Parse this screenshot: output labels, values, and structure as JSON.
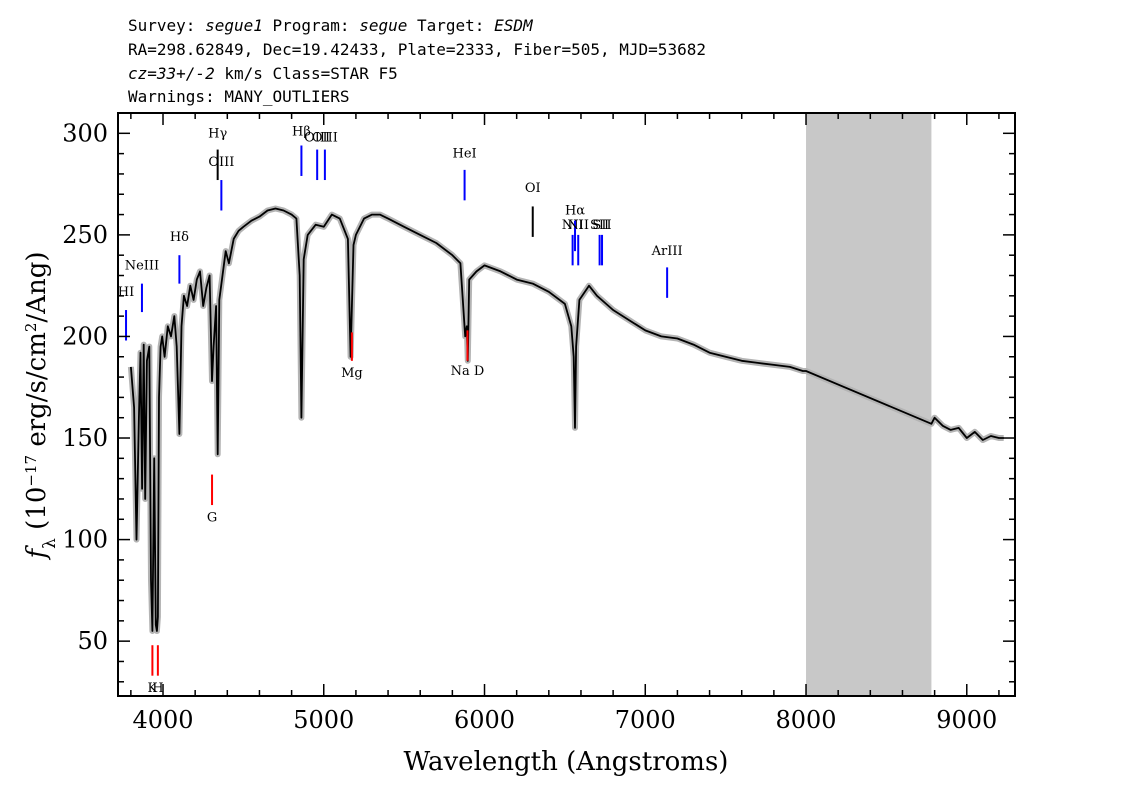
{
  "header": {
    "line1": [
      {
        "text": "Survey: ",
        "italic": false
      },
      {
        "text": "segue1",
        "italic": true
      },
      {
        "text": " Program: ",
        "italic": false
      },
      {
        "text": "segue",
        "italic": true
      },
      {
        "text": " Target: ",
        "italic": false
      },
      {
        "text": "ESDM",
        "italic": true
      }
    ],
    "line2": "RA=298.62849, Dec=19.42433, Plate=2333, Fiber=505, MJD=53682",
    "line3": [
      {
        "text": "cz=33+/-2",
        "italic": true
      },
      {
        "text": " km/s Class=STAR F5",
        "italic": false
      }
    ],
    "line4": "Warnings: MANY_OUTLIERS"
  },
  "chart_data": {
    "type": "line",
    "title": "",
    "xlabel": "Wavelength (Angstroms)",
    "ylabel": {
      "f": "f",
      "sub": "λ",
      "rest1": " (10",
      "sup1": "−17",
      "rest2": " erg/s/cm",
      "sup2": "2",
      "rest3": "/Ang)"
    },
    "xlim": [
      3720,
      9300
    ],
    "ylim": [
      23,
      310
    ],
    "xticks": [
      4000,
      5000,
      6000,
      7000,
      8000,
      9000
    ],
    "yticks": [
      50,
      100,
      150,
      200,
      250,
      300
    ],
    "grid": false,
    "masked_region": {
      "x": [
        8000,
        8780
      ],
      "color": "#c8c8c8"
    },
    "colors": {
      "spectrum": "#000000",
      "error_band": "#b4b4b4",
      "emission": "#0000ff",
      "absorption": "#ff0000",
      "sky": "#000000"
    },
    "series": [
      {
        "x": [
          3800,
          3820,
          3835,
          3850,
          3860,
          3870,
          3880,
          3889,
          3900,
          3915,
          3925,
          3934,
          3945,
          3955,
          3962,
          3968,
          3975,
          3985,
          3995,
          4010,
          4030,
          4050,
          4070,
          4085,
          4102,
          4115,
          4130,
          4150,
          4170,
          4190,
          4210,
          4230,
          4250,
          4270,
          4290,
          4305,
          4315,
          4330,
          4340,
          4350,
          4370,
          4390,
          4410,
          4440,
          4470,
          4500,
          4550,
          4600,
          4650,
          4700,
          4750,
          4800,
          4830,
          4850,
          4861,
          4875,
          4900,
          4950,
          5000,
          5050,
          5100,
          5150,
          5167,
          5175,
          5185,
          5200,
          5250,
          5300,
          5350,
          5400,
          5500,
          5600,
          5700,
          5800,
          5850,
          5880,
          5890,
          5896,
          5905,
          5950,
          6000,
          6100,
          6200,
          6300,
          6400,
          6500,
          6540,
          6555,
          6563,
          6570,
          6590,
          6650,
          6700,
          6800,
          6900,
          7000,
          7100,
          7200,
          7300,
          7400,
          7500,
          7600,
          7700,
          7800,
          7900,
          7980,
          8000,
          8780,
          8800,
          8850,
          8900,
          8950,
          9000,
          9050,
          9100,
          9150,
          9200,
          9230
        ],
        "y": [
          185,
          165,
          100,
          160,
          192,
          125,
          196,
          120,
          188,
          195,
          80,
          55,
          140,
          58,
          55,
          62,
          170,
          195,
          200,
          190,
          205,
          200,
          210,
          195,
          152,
          205,
          220,
          215,
          225,
          218,
          228,
          232,
          215,
          224,
          230,
          178,
          195,
          215,
          142,
          218,
          230,
          242,
          236,
          248,
          252,
          254,
          257,
          259,
          262,
          263,
          262,
          260,
          258,
          230,
          160,
          238,
          250,
          255,
          254,
          260,
          258,
          248,
          190,
          215,
          245,
          250,
          258,
          260,
          260,
          258,
          254,
          250,
          246,
          240,
          236,
          200,
          205,
          188,
          228,
          232,
          235,
          232,
          228,
          226,
          222,
          216,
          205,
          190,
          155,
          195,
          218,
          225,
          220,
          213,
          208,
          203,
          200,
          199,
          196,
          192,
          190,
          188,
          187,
          186,
          185,
          183,
          183,
          157,
          160,
          156,
          154,
          155,
          150,
          153,
          149,
          151,
          150,
          150
        ]
      }
    ],
    "line_ids": [
      {
        "label": "HI",
        "x": 3770,
        "y1": 213,
        "y2": 198,
        "kind": "emission",
        "label_y": 220
      },
      {
        "label": "NeIII",
        "x": 3869,
        "y1": 226,
        "y2": 212,
        "kind": "emission",
        "label_y": 233
      },
      {
        "label": "Hδ",
        "x": 4102,
        "y1": 240,
        "y2": 226,
        "kind": "emission",
        "label_y": 247
      },
      {
        "label": "Hγ",
        "x": 4340,
        "y1": 292,
        "y2": 277,
        "kind": "sky",
        "label_y": 298
      },
      {
        "label": "OIII",
        "x": 4363,
        "y1": 277,
        "y2": 262,
        "kind": "emission",
        "label_y": 284
      },
      {
        "label": "Hβ",
        "x": 4861,
        "y1": 294,
        "y2": 279,
        "kind": "emission",
        "label_y": 299
      },
      {
        "label": "OIII",
        "x": 4959,
        "y1": 292,
        "y2": 277,
        "kind": "emission",
        "label_y": 296
      },
      {
        "label": "OIII",
        "x": 5007,
        "y1": 292,
        "y2": 277,
        "kind": "emission",
        "label_y": 296
      },
      {
        "label": "HeI",
        "x": 5876,
        "y1": 282,
        "y2": 267,
        "kind": "emission",
        "label_y": 288
      },
      {
        "label": "OI",
        "x": 6300,
        "y1": 264,
        "y2": 249,
        "kind": "sky",
        "label_y": 271
      },
      {
        "label": "NII",
        "x": 6548,
        "y1": 250,
        "y2": 235,
        "kind": "emission",
        "label_y": 253
      },
      {
        "label": "Hα",
        "x": 6563,
        "y1": 257,
        "y2": 242,
        "kind": "emission",
        "label_y": 260
      },
      {
        "label": "NII",
        "x": 6583,
        "y1": 250,
        "y2": 235,
        "kind": "emission",
        "label_y": 253
      },
      {
        "label": "SII",
        "x": 6716,
        "y1": 250,
        "y2": 235,
        "kind": "emission",
        "label_y": 253
      },
      {
        "label": "SII",
        "x": 6731,
        "y1": 250,
        "y2": 235,
        "kind": "emission",
        "label_y": 253
      },
      {
        "label": "ArIII",
        "x": 7136,
        "y1": 234,
        "y2": 219,
        "kind": "emission",
        "label_y": 240
      },
      {
        "label": "Mg",
        "x": 5175,
        "y1": 202,
        "y2": 188,
        "kind": "absorption",
        "label_y": 180
      },
      {
        "label": "Na D",
        "x": 5894,
        "y1": 203,
        "y2": 188,
        "kind": "absorption",
        "label_y": 181
      },
      {
        "label": "G",
        "x": 4305,
        "y1": 132,
        "y2": 117,
        "kind": "absorption",
        "label_y": 109
      },
      {
        "label": "K",
        "x": 3934,
        "y1": 48,
        "y2": 33,
        "kind": "absorption",
        "label_y": 25
      },
      {
        "label": "H",
        "x": 3968,
        "y1": 48,
        "y2": 33,
        "kind": "absorption",
        "label_y": 25
      }
    ]
  }
}
